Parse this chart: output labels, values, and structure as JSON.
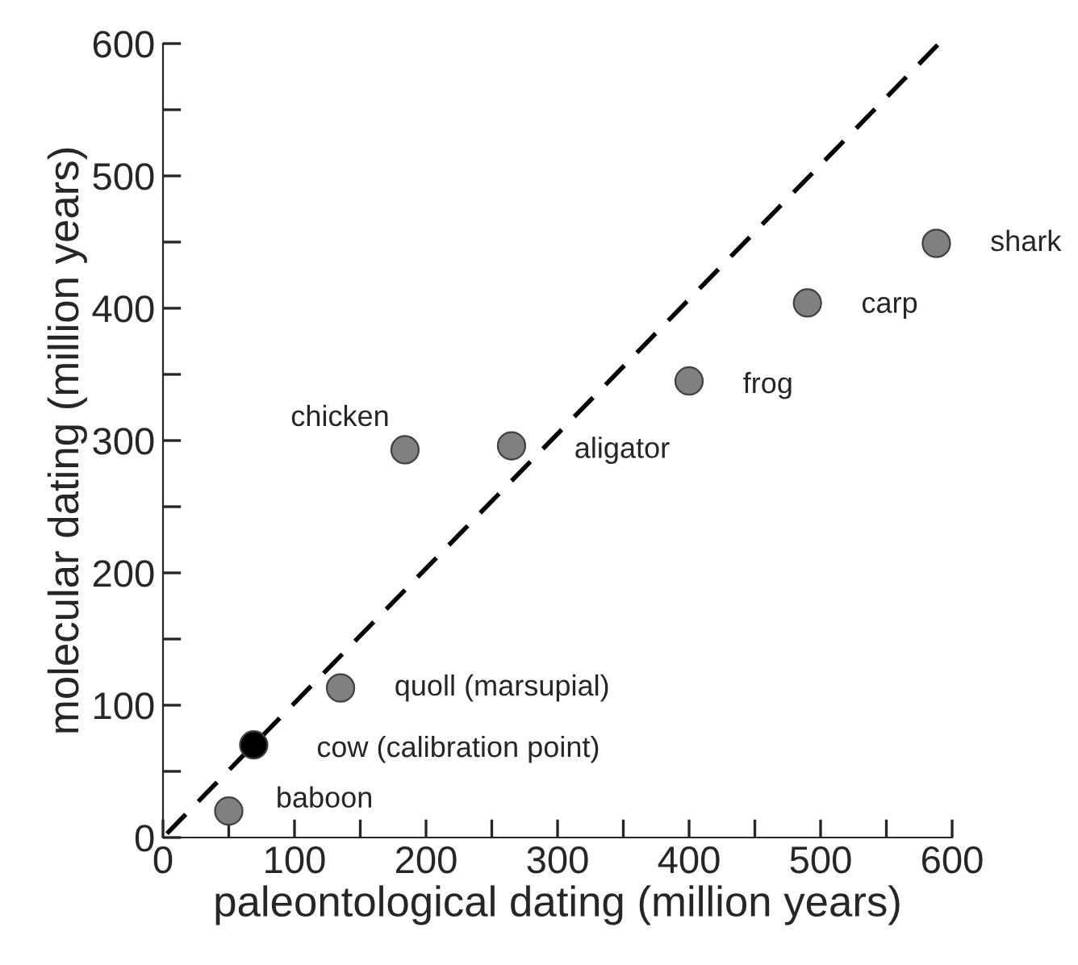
{
  "chart_data": {
    "type": "scatter",
    "xlabel": "paleontological dating (million years)",
    "ylabel": "molecular dating (million years)",
    "xlim": [
      0,
      600
    ],
    "ylim": [
      0,
      600
    ],
    "xticks": [
      0,
      {
        "value": 50,
        "label": null
      },
      100,
      {
        "value": 150,
        "label": null
      },
      200,
      {
        "value": 250,
        "label": null
      },
      300,
      {
        "value": 350,
        "label": null
      },
      400,
      {
        "value": 450,
        "label": null
      },
      500,
      {
        "value": 550,
        "label": null
      },
      600
    ],
    "yticks": [
      0,
      {
        "value": 50,
        "label": null
      },
      100,
      {
        "value": 150,
        "label": null
      },
      200,
      {
        "value": 250,
        "label": null
      },
      300,
      {
        "value": 350,
        "label": null
      },
      400,
      {
        "value": 450,
        "label": null
      },
      500,
      {
        "value": 550,
        "label": null
      },
      600
    ],
    "grid": false,
    "legend": false,
    "marker": "circle",
    "series": [
      {
        "x": [
          50,
          69,
          135,
          184,
          265,
          400,
          490,
          588
        ],
        "values": [
          20,
          70,
          113,
          293,
          296,
          345,
          404,
          449
        ],
        "colors": [
          "#808080",
          "#000000",
          "#808080",
          "#808080",
          "#808080",
          "#808080",
          "#808080",
          "#808080"
        ]
      },
      {
        "type": "line",
        "x": [
          3,
          590
        ],
        "values": [
          3,
          600
        ],
        "color": "#000000",
        "line_style": "dashed",
        "marker": "none"
      }
    ],
    "annotations": [
      {
        "text": "baboon",
        "x": 50,
        "y": 20
      },
      {
        "text": "cow (calibration point)",
        "x": 69,
        "y": 70
      },
      {
        "text": "quoll (marsupial)",
        "x": 135,
        "y": 113
      },
      {
        "text": "chicken",
        "x": 184,
        "y": 293
      },
      {
        "text": "aligator",
        "x": 265,
        "y": 296
      },
      {
        "text": "frog",
        "x": 400,
        "y": 345
      },
      {
        "text": "carp",
        "x": 490,
        "y": 404
      },
      {
        "text": "shark",
        "x": 588,
        "y": 449
      }
    ]
  }
}
